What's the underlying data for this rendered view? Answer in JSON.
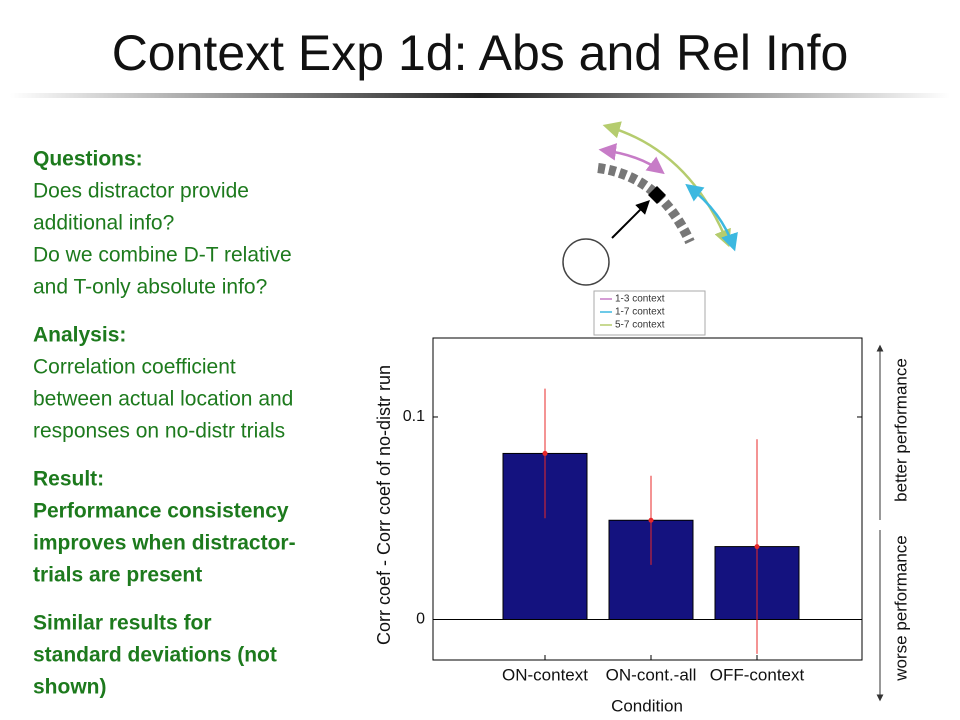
{
  "title": "Context Exp 1d: Abs and Rel Info",
  "sections": [
    {
      "heading": "Questions:",
      "lines": [
        "Does distractor provide",
        "additional info?",
        "Do we combine D-T relative",
        "and T-only absolute info?"
      ]
    },
    {
      "heading": "Analysis:",
      "lines": [
        "Correlation coefficient",
        "between actual location and",
        "responses on no-distr trials"
      ]
    },
    {
      "heading": "Result:",
      "lines": [
        "Performance consistency",
        "improves when distractor-",
        "trials are present"
      ]
    },
    {
      "lines": [
        "Similar results for",
        "standard deviations (not",
        "shown)"
      ]
    }
  ],
  "diagram_legend": [
    {
      "name": "1-3 context",
      "color": "#c77cc7"
    },
    {
      "name": "1-7 context",
      "color": "#3cb8e0"
    },
    {
      "name": "5-7 context",
      "color": "#b5cc6e"
    }
  ],
  "chart_data": {
    "type": "bar",
    "categories": [
      "ON-context",
      "ON-cont.-all",
      "OFF-context"
    ],
    "values": [
      0.082,
      0.049,
      0.036
    ],
    "errors": [
      0.032,
      0.022,
      0.053
    ],
    "color": "#14127f",
    "error_color": "#e8282a",
    "xlabel": "Condition",
    "ylabel": "Corr coef - Corr coef of no-distr run",
    "ylim": [
      -0.02,
      0.139
    ],
    "yticks": [
      0,
      0.1
    ],
    "annotations": [
      "better performance",
      "worse performance"
    ]
  }
}
